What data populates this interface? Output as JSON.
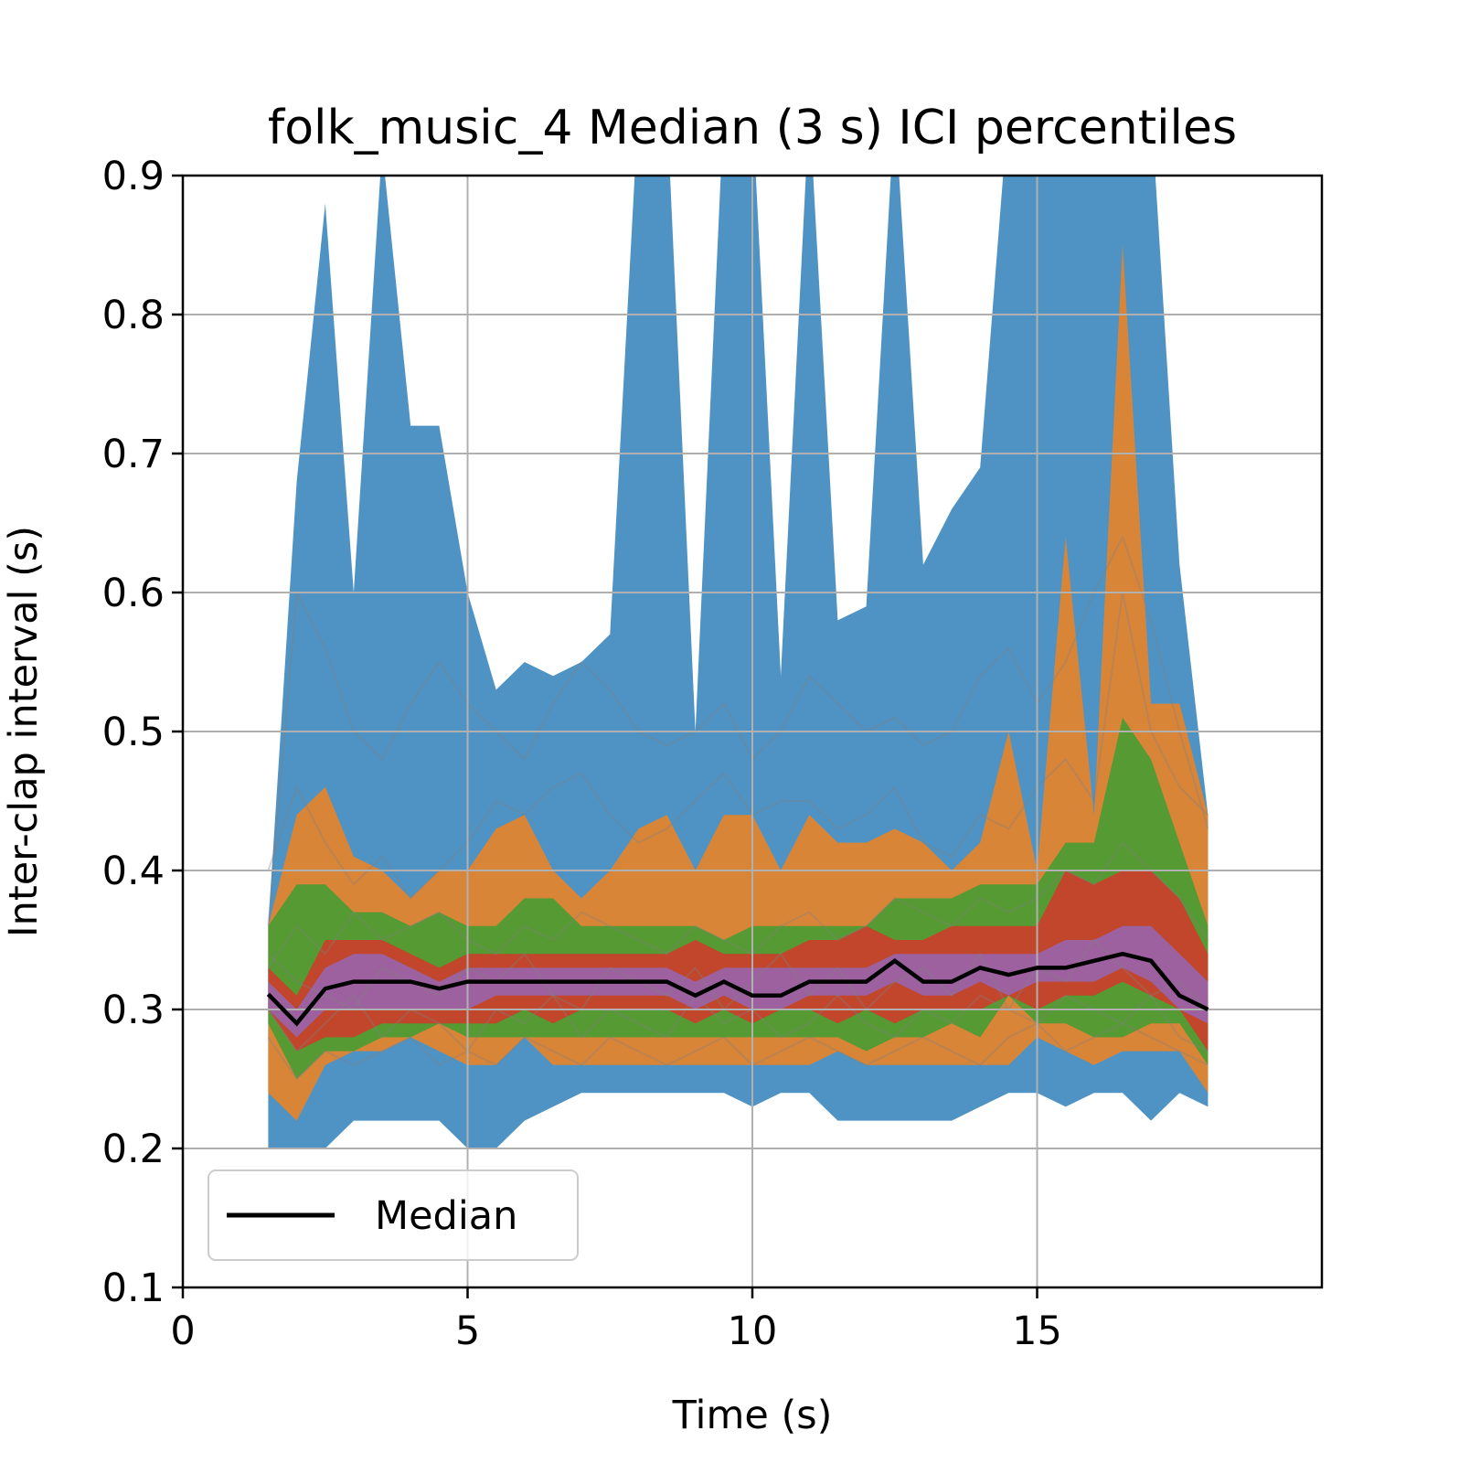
{
  "chart_data": {
    "type": "area",
    "title": "folk_music_4 Median (3 s) ICI percentiles",
    "xlabel": "Time (s)",
    "ylabel": "Inter-clap interval (s)",
    "xlim": [
      0,
      20
    ],
    "ylim": [
      0.1,
      0.9
    ],
    "x_ticks": [
      "0",
      "5",
      "10",
      "15"
    ],
    "y_ticks": [
      "0.1",
      "0.2",
      "0.3",
      "0.4",
      "0.5",
      "0.6",
      "0.7",
      "0.8",
      "0.9"
    ],
    "grid": true,
    "legend": {
      "position": "lower-left",
      "entries": [
        "Median"
      ]
    },
    "colors": {
      "band_outer": "#4f93c4",
      "band_2": "#de8434",
      "band_3": "#519b33",
      "band_4": "#c5432b",
      "band_inner": "#9c62a3",
      "median": "#000000",
      "traces": "#808080",
      "grid": "#b0b0b0"
    },
    "x": [
      1.5,
      2,
      2.5,
      3,
      3.5,
      4,
      4.5,
      5,
      5.5,
      6,
      6.5,
      7,
      7.5,
      8,
      8.5,
      9,
      9.5,
      10,
      10.5,
      11,
      11.5,
      12,
      12.5,
      13,
      13.5,
      14,
      14.5,
      15,
      15.5,
      16,
      16.5,
      17,
      17.5,
      18
    ],
    "bands": [
      {
        "upper": [
          0.36,
          0.68,
          0.88,
          0.6,
          0.92,
          0.72,
          0.72,
          0.6,
          0.53,
          0.55,
          0.54,
          0.55,
          0.57,
          0.95,
          0.95,
          0.5,
          0.95,
          0.95,
          0.54,
          0.95,
          0.58,
          0.59,
          0.95,
          0.62,
          0.66,
          0.69,
          0.95,
          0.95,
          0.95,
          0.95,
          0.95,
          0.95,
          0.62,
          0.44
        ],
        "lower": [
          0.2,
          0.2,
          0.2,
          0.22,
          0.22,
          0.22,
          0.22,
          0.2,
          0.2,
          0.22,
          0.23,
          0.24,
          0.24,
          0.24,
          0.24,
          0.24,
          0.24,
          0.23,
          0.24,
          0.24,
          0.22,
          0.22,
          0.22,
          0.22,
          0.22,
          0.23,
          0.24,
          0.24,
          0.23,
          0.24,
          0.24,
          0.22,
          0.24,
          0.23
        ]
      },
      {
        "upper": [
          0.36,
          0.44,
          0.46,
          0.41,
          0.4,
          0.38,
          0.4,
          0.4,
          0.43,
          0.44,
          0.4,
          0.38,
          0.4,
          0.43,
          0.44,
          0.4,
          0.44,
          0.44,
          0.4,
          0.44,
          0.42,
          0.42,
          0.43,
          0.42,
          0.4,
          0.42,
          0.5,
          0.4,
          0.64,
          0.44,
          0.85,
          0.52,
          0.52,
          0.44
        ],
        "lower": [
          0.24,
          0.22,
          0.26,
          0.27,
          0.27,
          0.28,
          0.27,
          0.26,
          0.26,
          0.28,
          0.26,
          0.26,
          0.26,
          0.26,
          0.26,
          0.26,
          0.26,
          0.26,
          0.26,
          0.26,
          0.27,
          0.26,
          0.26,
          0.26,
          0.26,
          0.26,
          0.26,
          0.28,
          0.27,
          0.26,
          0.27,
          0.27,
          0.27,
          0.24
        ]
      },
      {
        "upper": [
          0.36,
          0.39,
          0.39,
          0.37,
          0.37,
          0.36,
          0.37,
          0.36,
          0.36,
          0.38,
          0.38,
          0.36,
          0.36,
          0.36,
          0.36,
          0.36,
          0.35,
          0.36,
          0.36,
          0.36,
          0.36,
          0.36,
          0.38,
          0.38,
          0.38,
          0.39,
          0.39,
          0.39,
          0.42,
          0.42,
          0.51,
          0.48,
          0.42,
          0.36
        ],
        "lower": [
          0.29,
          0.25,
          0.27,
          0.27,
          0.28,
          0.28,
          0.29,
          0.28,
          0.28,
          0.28,
          0.28,
          0.28,
          0.28,
          0.28,
          0.28,
          0.28,
          0.28,
          0.28,
          0.28,
          0.28,
          0.28,
          0.27,
          0.28,
          0.28,
          0.29,
          0.28,
          0.31,
          0.29,
          0.29,
          0.28,
          0.28,
          0.29,
          0.29,
          0.26
        ]
      },
      {
        "upper": [
          0.33,
          0.31,
          0.35,
          0.35,
          0.35,
          0.34,
          0.33,
          0.34,
          0.34,
          0.34,
          0.34,
          0.34,
          0.34,
          0.34,
          0.34,
          0.35,
          0.34,
          0.34,
          0.34,
          0.35,
          0.35,
          0.36,
          0.35,
          0.35,
          0.36,
          0.36,
          0.36,
          0.36,
          0.4,
          0.39,
          0.4,
          0.4,
          0.38,
          0.34
        ],
        "lower": [
          0.3,
          0.27,
          0.28,
          0.28,
          0.29,
          0.29,
          0.29,
          0.29,
          0.29,
          0.3,
          0.29,
          0.3,
          0.3,
          0.3,
          0.3,
          0.29,
          0.3,
          0.29,
          0.3,
          0.3,
          0.29,
          0.3,
          0.29,
          0.3,
          0.3,
          0.3,
          0.31,
          0.3,
          0.31,
          0.31,
          0.32,
          0.31,
          0.3,
          0.27
        ]
      },
      {
        "upper": [
          0.32,
          0.3,
          0.33,
          0.34,
          0.34,
          0.33,
          0.32,
          0.33,
          0.33,
          0.33,
          0.33,
          0.33,
          0.33,
          0.33,
          0.33,
          0.32,
          0.33,
          0.33,
          0.33,
          0.33,
          0.33,
          0.33,
          0.34,
          0.34,
          0.34,
          0.34,
          0.34,
          0.34,
          0.35,
          0.35,
          0.36,
          0.36,
          0.34,
          0.32
        ],
        "lower": [
          0.3,
          0.28,
          0.3,
          0.3,
          0.3,
          0.3,
          0.3,
          0.3,
          0.31,
          0.31,
          0.31,
          0.31,
          0.31,
          0.31,
          0.31,
          0.3,
          0.31,
          0.3,
          0.3,
          0.31,
          0.31,
          0.31,
          0.32,
          0.31,
          0.31,
          0.32,
          0.31,
          0.32,
          0.32,
          0.32,
          0.33,
          0.32,
          0.3,
          0.29
        ]
      }
    ],
    "series": [
      {
        "name": "Median",
        "values": [
          0.311,
          0.29,
          0.315,
          0.32,
          0.32,
          0.32,
          0.315,
          0.32,
          0.32,
          0.32,
          0.32,
          0.32,
          0.32,
          0.32,
          0.32,
          0.31,
          0.32,
          0.31,
          0.31,
          0.32,
          0.32,
          0.32,
          0.335,
          0.32,
          0.32,
          0.33,
          0.325,
          0.33,
          0.33,
          0.335,
          0.34,
          0.335,
          0.31,
          0.3
        ]
      }
    ],
    "traces": [
      [
        0.34,
        0.32,
        0.31,
        0.3,
        0.33,
        0.32,
        0.31,
        0.33,
        0.32,
        0.34,
        0.31,
        0.3,
        0.33,
        0.32,
        0.31,
        0.33,
        0.3,
        0.32,
        0.34,
        0.31,
        0.33,
        0.3,
        0.32,
        0.33,
        0.31,
        0.34,
        0.3,
        0.33,
        0.32,
        0.35,
        0.33,
        0.31,
        0.32,
        0.3
      ],
      [
        0.3,
        0.27,
        0.29,
        0.31,
        0.28,
        0.3,
        0.29,
        0.27,
        0.3,
        0.29,
        0.31,
        0.28,
        0.3,
        0.29,
        0.28,
        0.31,
        0.29,
        0.3,
        0.28,
        0.29,
        0.31,
        0.29,
        0.28,
        0.3,
        0.29,
        0.31,
        0.3,
        0.29,
        0.31,
        0.3,
        0.29,
        0.31,
        0.28,
        0.27
      ],
      [
        0.33,
        0.36,
        0.34,
        0.37,
        0.35,
        0.36,
        0.37,
        0.35,
        0.34,
        0.36,
        0.35,
        0.37,
        0.36,
        0.35,
        0.34,
        0.36,
        0.35,
        0.34,
        0.36,
        0.37,
        0.35,
        0.36,
        0.38,
        0.37,
        0.36,
        0.38,
        0.37,
        0.38,
        0.4,
        0.39,
        0.42,
        0.4,
        0.38,
        0.35
      ],
      [
        0.28,
        0.25,
        0.27,
        0.26,
        0.27,
        0.28,
        0.26,
        0.27,
        0.26,
        0.28,
        0.27,
        0.26,
        0.28,
        0.27,
        0.26,
        0.27,
        0.28,
        0.26,
        0.27,
        0.28,
        0.27,
        0.26,
        0.27,
        0.28,
        0.27,
        0.26,
        0.28,
        0.29,
        0.27,
        0.28,
        0.29,
        0.28,
        0.27,
        0.26
      ],
      [
        0.4,
        0.46,
        0.42,
        0.39,
        0.41,
        0.38,
        0.4,
        0.42,
        0.45,
        0.44,
        0.46,
        0.47,
        0.44,
        0.42,
        0.43,
        0.45,
        0.47,
        0.44,
        0.45,
        0.45,
        0.43,
        0.44,
        0.46,
        0.42,
        0.41,
        0.44,
        0.43,
        0.46,
        0.48,
        0.45,
        0.6,
        0.5,
        0.46,
        0.44
      ],
      [
        0.36,
        0.6,
        0.56,
        0.5,
        0.48,
        0.52,
        0.55,
        0.52,
        0.5,
        0.48,
        0.52,
        0.55,
        0.53,
        0.5,
        0.49,
        0.5,
        0.52,
        0.48,
        0.5,
        0.54,
        0.52,
        0.5,
        0.51,
        0.49,
        0.5,
        0.54,
        0.56,
        0.52,
        0.55,
        0.6,
        0.64,
        0.58,
        0.5,
        0.43
      ]
    ]
  }
}
